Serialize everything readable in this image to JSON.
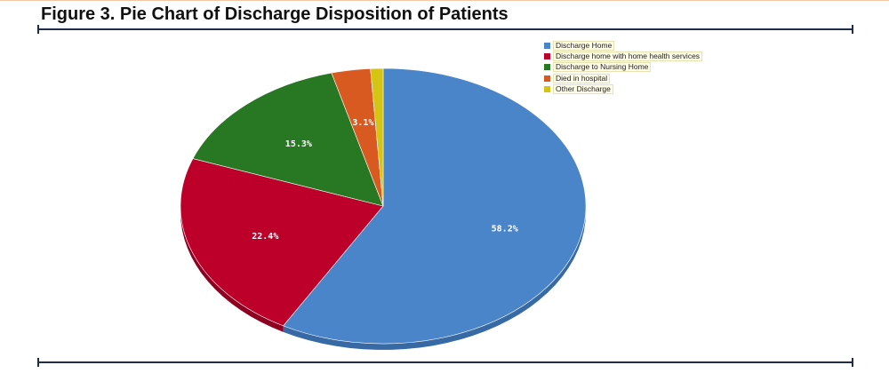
{
  "title": "Figure 3. Pie Chart of Discharge Disposition of Patients",
  "chart_data": {
    "type": "pie",
    "title": "Figure 3. Pie Chart of Discharge Disposition of Patients",
    "legend_position": "top-right",
    "slices": [
      {
        "name": "Discharge Home",
        "value": 58.2,
        "label": "58.2%",
        "color": "#4a84c9",
        "side_color": "#3769a5"
      },
      {
        "name": "Discharge home with home health services",
        "value": 22.4,
        "label": "22.4%",
        "color": "#bd0029",
        "side_color": "#8f0020"
      },
      {
        "name": "Discharge to Nursing Home",
        "value": 15.3,
        "label": "15.3%",
        "color": "#287723",
        "side_color": "#1d5a1a"
      },
      {
        "name": "Died in hospital",
        "value": 3.1,
        "label": "3.1%",
        "color": "#d95a20",
        "side_color": "#a8451a"
      },
      {
        "name": "Other Discharge",
        "value": 1.0,
        "label": "",
        "color": "#d4c414",
        "side_color": "#a59810"
      }
    ]
  }
}
